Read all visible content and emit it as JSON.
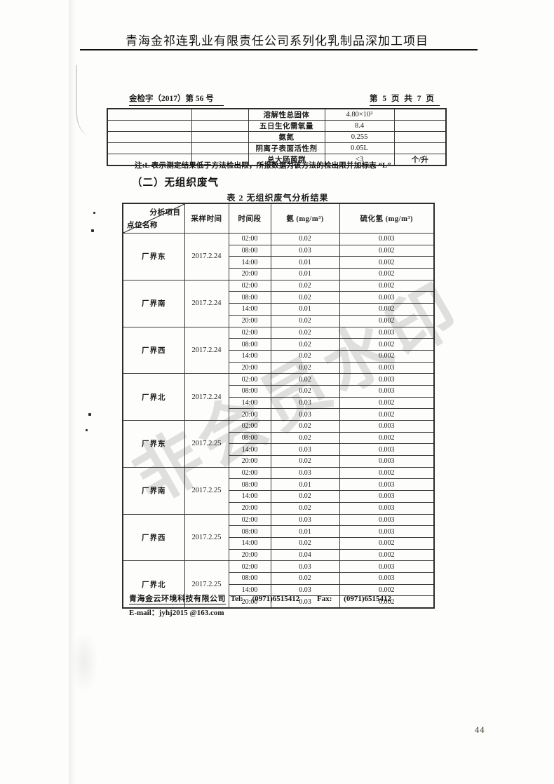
{
  "header": {
    "title": "青海金祁连乳业有限责任公司系列化乳制品深加工项目",
    "doc_number": "金检字（2017）第 56 号",
    "page_info": "第 5 页 共 7 页"
  },
  "top_table": {
    "rows": [
      {
        "param": "溶解性总固体",
        "value": "4.80×10²",
        "unit": ""
      },
      {
        "param": "五日生化需氧量",
        "value": "8.4",
        "unit": ""
      },
      {
        "param": "氨氮",
        "value": "0.255",
        "unit": ""
      },
      {
        "param": "阴离子表面活性剂",
        "value": "0.05L",
        "unit": ""
      },
      {
        "param": "总大肠菌群",
        "value": "<3",
        "unit": "个/升"
      }
    ]
  },
  "note": "注:L 表示测定结果低于方法检出限，所报数据为该方法的检出限并加标志 “L”",
  "section_heading": "（二）无组织废气",
  "table2": {
    "title": "表 2 无组织废气分析结果",
    "corner": {
      "top": "分析项目",
      "bottom": "点位名称"
    },
    "headers": [
      "采样时间",
      "时间段",
      "氨 (mg/m³)",
      "硫化氢 (mg/m³)"
    ],
    "groups": [
      {
        "location": "厂界东",
        "date": "2017.2.24",
        "rows": [
          [
            "02:00",
            "0.02",
            "0.003"
          ],
          [
            "08:00",
            "0.03",
            "0.002"
          ],
          [
            "14:00",
            "0.01",
            "0.002"
          ],
          [
            "20:00",
            "0.01",
            "0.002"
          ]
        ]
      },
      {
        "location": "厂界南",
        "date": "2017.2.24",
        "rows": [
          [
            "02:00",
            "0.02",
            "0.002"
          ],
          [
            "08:00",
            "0.02",
            "0.003"
          ],
          [
            "14:00",
            "0.01",
            "0.002"
          ],
          [
            "20:00",
            "0.02",
            "0.002"
          ]
        ]
      },
      {
        "location": "厂界西",
        "date": "2017.2.24",
        "rows": [
          [
            "02:00",
            "0.02",
            "0.003"
          ],
          [
            "08:00",
            "0.02",
            "0.002"
          ],
          [
            "14:00",
            "0.02",
            "0.002"
          ],
          [
            "20:00",
            "0.02",
            "0.003"
          ]
        ]
      },
      {
        "location": "厂界北",
        "date": "2017.2.24",
        "rows": [
          [
            "02:00",
            "0.02",
            "0.003"
          ],
          [
            "08:00",
            "0.02",
            "0.003"
          ],
          [
            "14:00",
            "0.03",
            "0.002"
          ],
          [
            "20:00",
            "0.03",
            "0.002"
          ]
        ]
      },
      {
        "location": "厂界东",
        "date": "2017.2.25",
        "rows": [
          [
            "02:00",
            "0.02",
            "0.003"
          ],
          [
            "08:00",
            "0.02",
            "0.002"
          ],
          [
            "14:00",
            "0.03",
            "0.003"
          ],
          [
            "20:00",
            "0.02",
            "0.003"
          ]
        ]
      },
      {
        "location": "厂界南",
        "date": "2017.2.25",
        "rows": [
          [
            "02:00",
            "0.03",
            "0.002"
          ],
          [
            "08:00",
            "0.01",
            "0.003"
          ],
          [
            "14:00",
            "0.02",
            "0.003"
          ],
          [
            "20:00",
            "0.02",
            "0.003"
          ]
        ]
      },
      {
        "location": "厂界西",
        "date": "2017.2.25",
        "rows": [
          [
            "02:00",
            "0.03",
            "0.003"
          ],
          [
            "08:00",
            "0.01",
            "0.003"
          ],
          [
            "14:00",
            "0.02",
            "0.002"
          ],
          [
            "20:00",
            "0.04",
            "0.002"
          ]
        ]
      },
      {
        "location": "厂界北",
        "date": "2017.2.25",
        "rows": [
          [
            "02:00",
            "0.03",
            "0.003"
          ],
          [
            "08:00",
            "0.02",
            "0.003"
          ],
          [
            "14:00",
            "0.03",
            "0.002"
          ],
          [
            "20:00",
            "0.03",
            "0.002"
          ]
        ]
      }
    ]
  },
  "footer": {
    "company": "青海金云环境科技有限公司",
    "tel_label": "Tel:",
    "tel": "(0971)6515412",
    "fax_label": "Fax:",
    "fax": "(0971)6515412",
    "email_label": "E-mail：",
    "email": "jyhj2015 @163.com"
  },
  "watermark": "非会员水印",
  "page_number": "44"
}
